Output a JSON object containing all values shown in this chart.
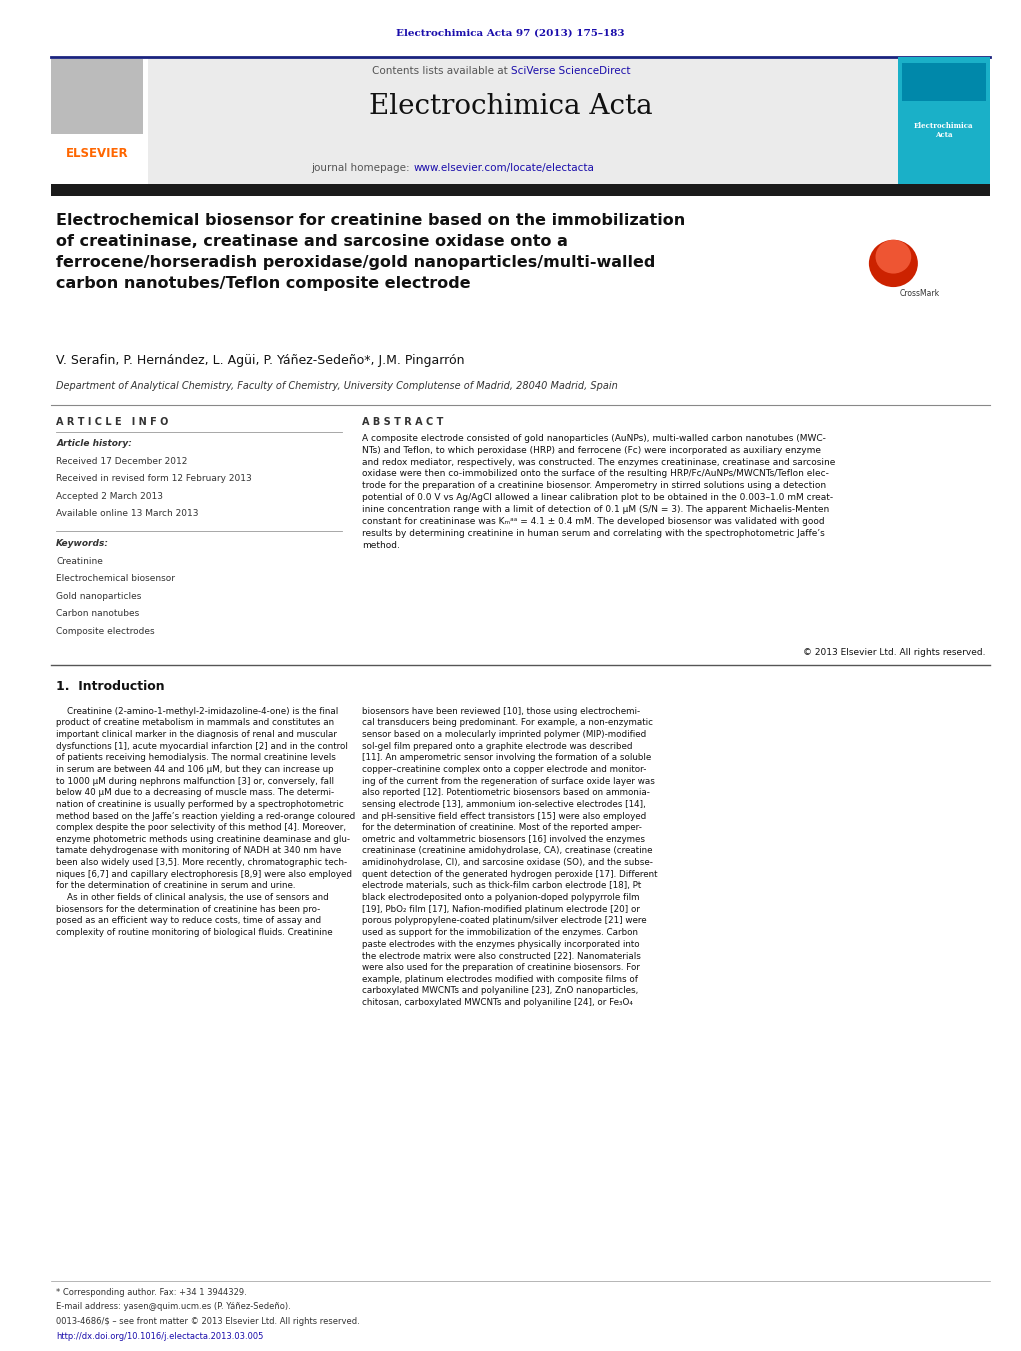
{
  "page_width": 10.21,
  "page_height": 13.51,
  "bg_color": "#ffffff",
  "journal_ref": "Electrochimica Acta 97 (2013) 175–183",
  "journal_ref_color": "#1a0dab",
  "header_title": "Electrochimica Acta",
  "header_subtitle_prefix": "Contents lists available at ",
  "header_subtitle_link": "SciVerse ScienceDirect",
  "header_homepage_prefix": "journal homepage: ",
  "header_homepage_link": "www.elsevier.com/locate/electacta",
  "top_rule_color": "#1a237e",
  "article_title": "Electrochemical biosensor for creatinine based on the immobilization\nof creatininase, creatinase and sarcosine oxidase onto a\nferrocene/horseradish peroxidase/gold nanoparticles/multi-walled\ncarbon nanotubes/Teflon composite electrode",
  "authors": "V. Serafin, P. Hernández, L. Agüi, P. Yáñez-Sedeño*, J.M. Pingarrón",
  "affiliation": "Department of Analytical Chemistry, Faculty of Chemistry, University Complutense of Madrid, 28040 Madrid, Spain",
  "article_info_header": "A R T I C L E   I N F O",
  "abstract_header": "A B S T R A C T",
  "article_history_label": "Article history:",
  "received1": "Received 17 December 2012",
  "received2": "Received in revised form 12 February 2013",
  "accepted": "Accepted 2 March 2013",
  "available": "Available online 13 March 2013",
  "keywords_label": "Keywords:",
  "keywords": [
    "Creatinine",
    "Electrochemical biosensor",
    "Gold nanoparticles",
    "Carbon nanotubes",
    "Composite electrodes"
  ],
  "abstract_text": "A composite electrode consisted of gold nanoparticles (AuNPs), multi-walled carbon nanotubes (MWC-\nNTs) and Teflon, to which peroxidase (HRP) and ferrocene (Fc) were incorporated as auxiliary enzyme\nand redox mediator, respectively, was constructed. The enzymes creatininase, creatinase and sarcosine\noxidase were then co-immobilized onto the surface of the resulting HRP/Fc/AuNPs/MWCNTs/Teflon elec-\ntrode for the preparation of a creatinine biosensor. Amperometry in stirred solutions using a detection\npotential of 0.0 V vs Ag/AgCl allowed a linear calibration plot to be obtained in the 0.003–1.0 mM creat-\ninine concentration range with a limit of detection of 0.1 μM (S/N = 3). The apparent Michaelis-Menten\nconstant for creatininase was Kₘᵃᵃ = 4.1 ± 0.4 mM. The developed biosensor was validated with good\nresults by determining creatinine in human serum and correlating with the spectrophotometric Jaffe’s\nmethod.",
  "copyright": "© 2013 Elsevier Ltd. All rights reserved.",
  "section1_title": "1.  Introduction",
  "intro_text_left": "    Creatinine (2-amino-1-methyl-2-imidazoline-4-one) is the final\nproduct of creatine metabolism in mammals and constitutes an\nimportant clinical marker in the diagnosis of renal and muscular\ndysfunctions [1], acute myocardial infarction [2] and in the control\nof patients receiving hemodialysis. The normal creatinine levels\nin serum are between 44 and 106 μM, but they can increase up\nto 1000 μM during nephrons malfunction [3] or, conversely, fall\nbelow 40 μM due to a decreasing of muscle mass. The determi-\nnation of creatinine is usually performed by a spectrophotometric\nmethod based on the Jaffe’s reaction yielding a red-orange coloured\ncomplex despite the poor selectivity of this method [4]. Moreover,\nenzyme photometric methods using creatinine deaminase and glu-\ntamate dehydrogenase with monitoring of NADH at 340 nm have\nbeen also widely used [3,5]. More recently, chromatographic tech-\nniques [6,7] and capillary electrophoresis [8,9] were also employed\nfor the determination of creatinine in serum and urine.\n    As in other fields of clinical analysis, the use of sensors and\nbiosensors for the determination of creatinine has been pro-\nposed as an efficient way to reduce costs, time of assay and\ncomplexity of routine monitoring of biological fluids. Creatinine",
  "intro_text_right": "biosensors have been reviewed [10], those using electrochemi-\ncal transducers being predominant. For example, a non-enzymatic\nsensor based on a molecularly imprinted polymer (MIP)-modified\nsol-gel film prepared onto a graphite electrode was described\n[11]. An amperometric sensor involving the formation of a soluble\ncopper–creatinine complex onto a copper electrode and monitor-\ning of the current from the regeneration of surface oxide layer was\nalso reported [12]. Potentiometric biosensors based on ammonia-\nsensing electrode [13], ammonium ion-selective electrodes [14],\nand pH-sensitive field effect transistors [15] were also employed\nfor the determination of creatinine. Most of the reported amper-\nometric and voltammetric biosensors [16] involved the enzymes\ncreatininase (creatinine amidohydrolase, CA), creatinase (creatine\namidinohydrolase, CI), and sarcosine oxidase (SO), and the subse-\nquent detection of the generated hydrogen peroxide [17]. Different\nelectrode materials, such as thick-film carbon electrode [18], Pt\nblack electrodeposited onto a polyanion-doped polypyrrole film\n[19], PbO₂ film [17], Nafion-modified platinum electrode [20] or\nporous polypropylene-coated platinum/silver electrode [21] were\nused as support for the immobilization of the enzymes. Carbon\npaste electrodes with the enzymes physically incorporated into\nthe electrode matrix were also constructed [22]. Nanomaterials\nwere also used for the preparation of creatinine biosensors. For\nexample, platinum electrodes modified with composite films of\ncarboxylated MWCNTs and polyaniline [23], ZnO nanoparticles,\nchitosan, carboxylated MWCNTs and polyaniline [24], or Fe₃O₄",
  "footer_text1": "* Corresponding author. Fax: +34 1 3944329.",
  "footer_text2": "E-mail address: yasen@quim.ucm.es (P. Yáñez-Sedeño).",
  "footer_text3": "0013-4686/$ – see front matter © 2013 Elsevier Ltd. All rights reserved.",
  "footer_text4": "http://dx.doi.org/10.1016/j.electacta.2013.03.005",
  "footer_link_color": "#1a0dab",
  "elsevier_orange": "#ff6600",
  "link_color": "#1a0dab"
}
